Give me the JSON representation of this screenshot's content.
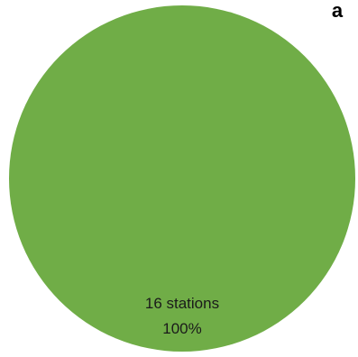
{
  "chart_data": {
    "type": "pie",
    "panel_label": "a",
    "slices": [
      {
        "count_label": "16 stations",
        "percent_label": "100%",
        "value": 16,
        "percent": 100,
        "color": "#70ad47"
      }
    ]
  }
}
